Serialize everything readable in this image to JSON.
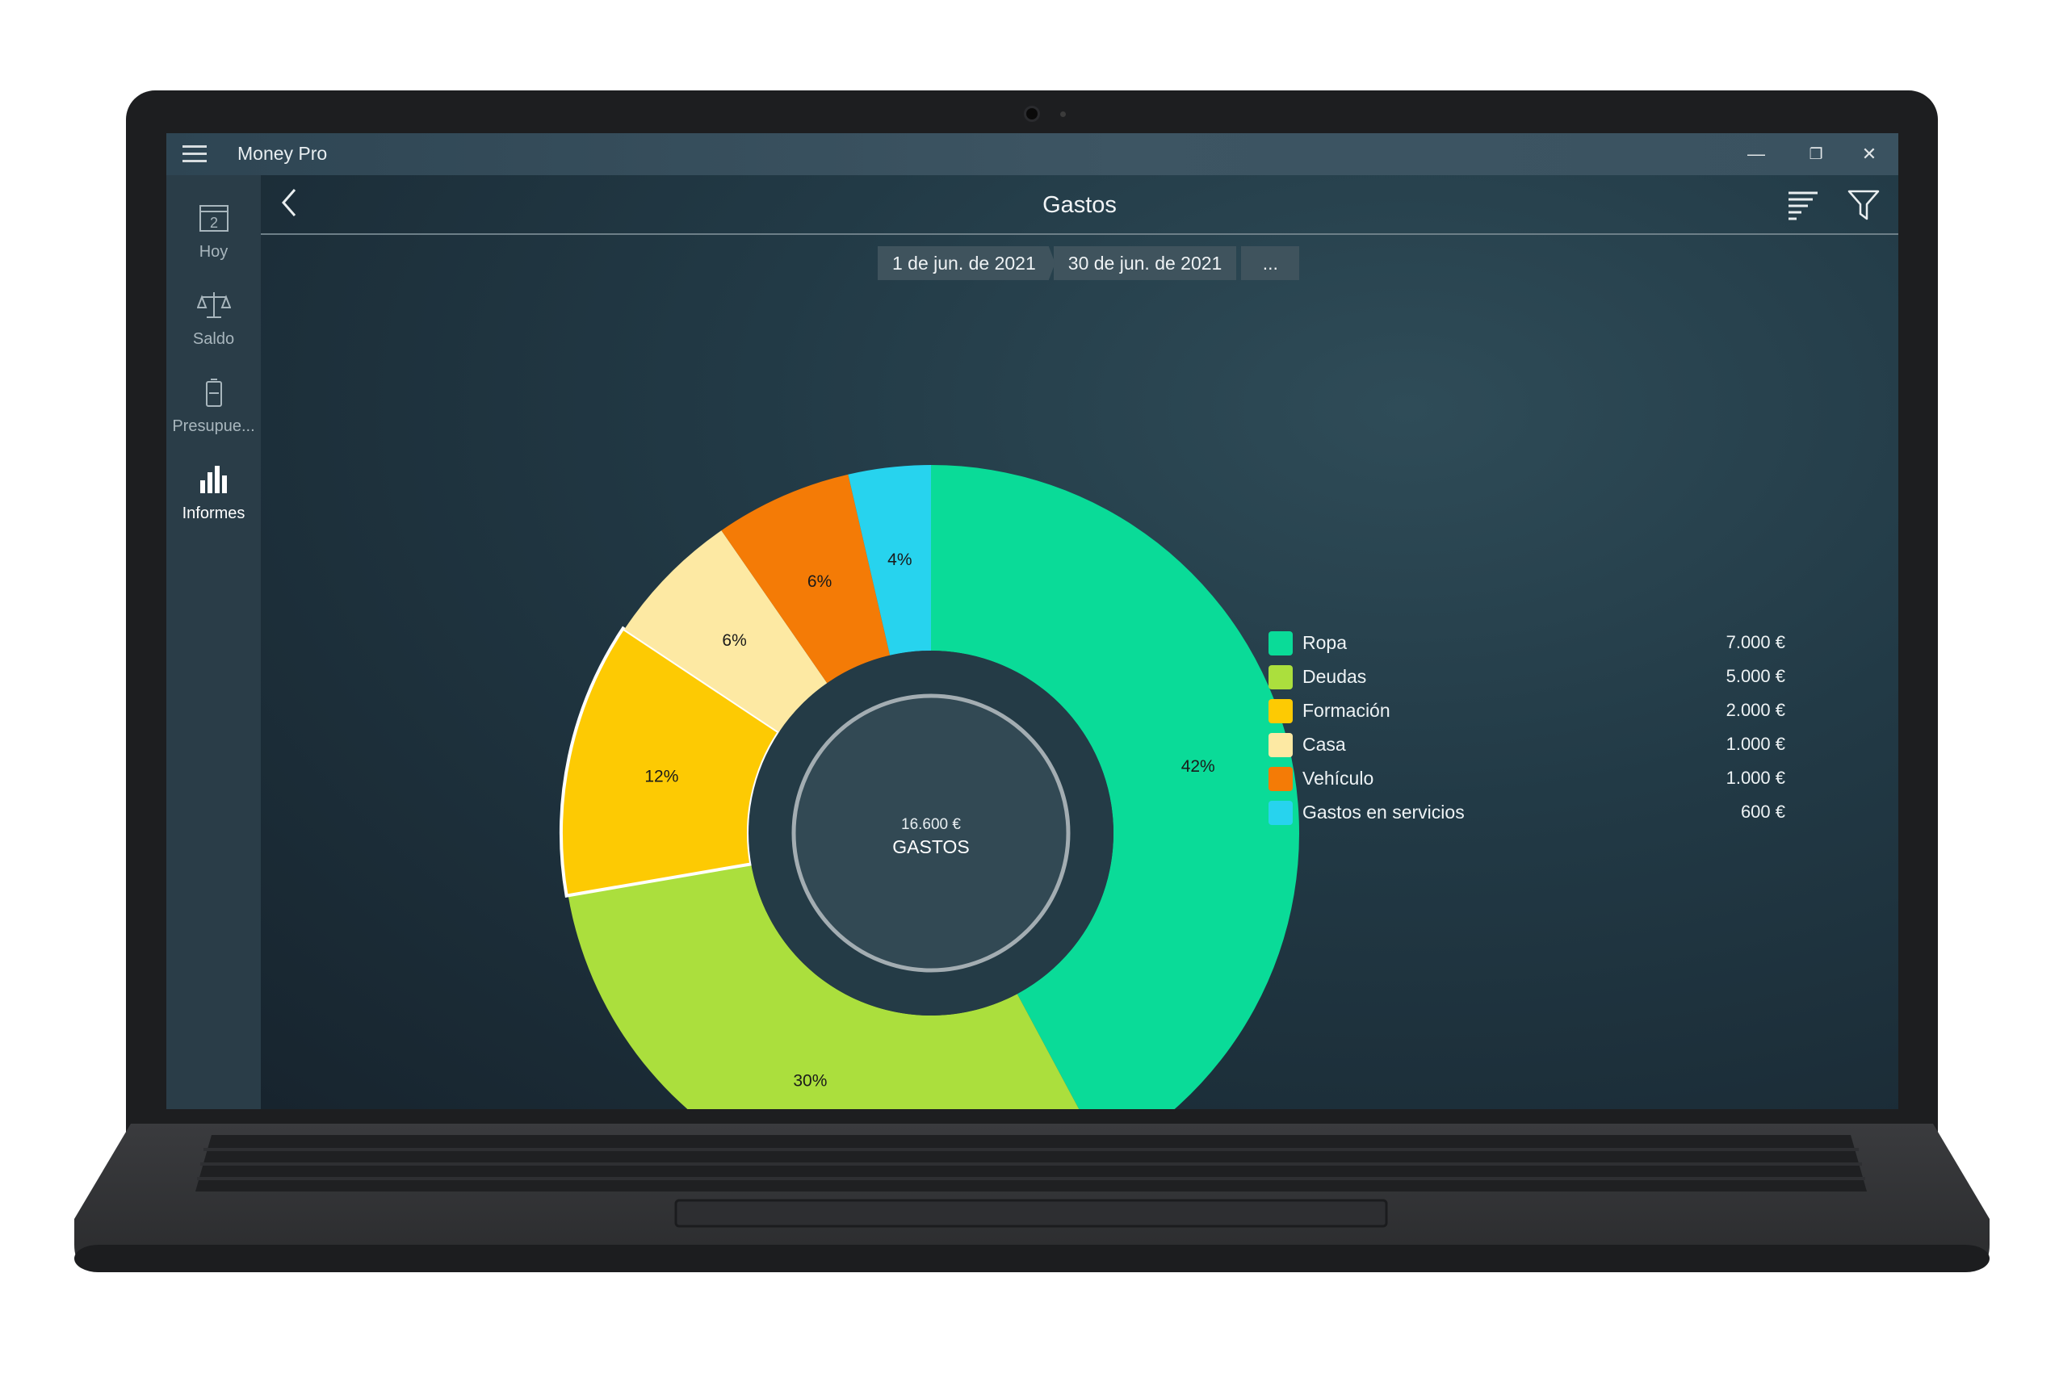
{
  "window": {
    "title": "Money Pro",
    "controls": [
      "—",
      "❐",
      "✕"
    ]
  },
  "sidebar": {
    "items": [
      {
        "label": "Hoy",
        "icon": "calendar-icon",
        "badge": "2",
        "active": false
      },
      {
        "label": "Saldo",
        "icon": "balance-scale-icon",
        "active": false
      },
      {
        "label": "Presupue...",
        "icon": "battery-icon",
        "active": false
      },
      {
        "label": "Informes",
        "icon": "bar-chart-icon",
        "active": true
      }
    ]
  },
  "header": {
    "title": "Gastos",
    "icons": [
      "back-icon",
      "sort-icon",
      "filter-icon"
    ]
  },
  "date_range": {
    "start": "1 de jun. de 2021",
    "end": "30 de jun. de 2021",
    "more": "..."
  },
  "summary": {
    "total": "16.600 €",
    "label": "GASTOS"
  },
  "legend": [
    {
      "name": "Ropa",
      "value": "7.000 €",
      "color": "#0adb98"
    },
    {
      "name": "Deudas",
      "value": "5.000 €",
      "color": "#abdf3d"
    },
    {
      "name": "Formación",
      "value": "2.000 €",
      "color": "#fdca03"
    },
    {
      "name": "Casa",
      "value": "1.000 €",
      "color": "#fde9a3"
    },
    {
      "name": "Vehículo",
      "value": "1.000 €",
      "color": "#f47b06"
    },
    {
      "name": "Gastos en servicios",
      "value": "600 €",
      "color": "#27d3ee"
    }
  ],
  "chart_data": {
    "type": "pie",
    "categories": [
      "Ropa",
      "Deudas",
      "Formación",
      "Casa",
      "Vehículo",
      "Gastos en servicios"
    ],
    "values": [
      7000,
      5000,
      2000,
      1000,
      1000,
      600
    ],
    "labels": [
      "42%",
      "30%",
      "12%",
      "6%",
      "6%",
      "4%"
    ],
    "colors": [
      "#0adb98",
      "#abdf3d",
      "#fdca03",
      "#fde9a3",
      "#f47b06",
      "#27d3ee"
    ],
    "highlighted": "Formación",
    "legend": "right"
  }
}
